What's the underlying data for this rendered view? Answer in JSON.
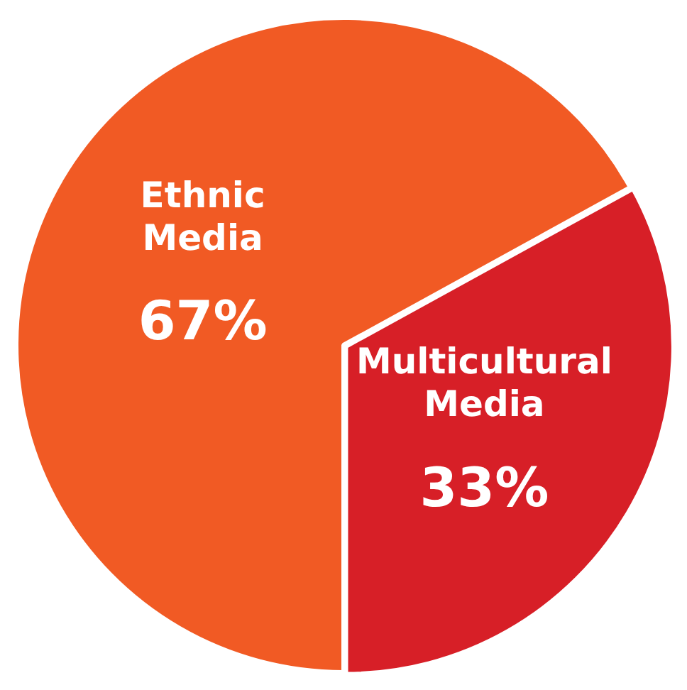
{
  "chart_data": {
    "type": "pie",
    "categories": [
      "Ethnic Media",
      "Multicultural Media"
    ],
    "values": [
      67,
      33
    ],
    "colors": [
      "#f15a24",
      "#d71f27"
    ],
    "value_labels": [
      "67%",
      "33%"
    ],
    "legend": false
  }
}
